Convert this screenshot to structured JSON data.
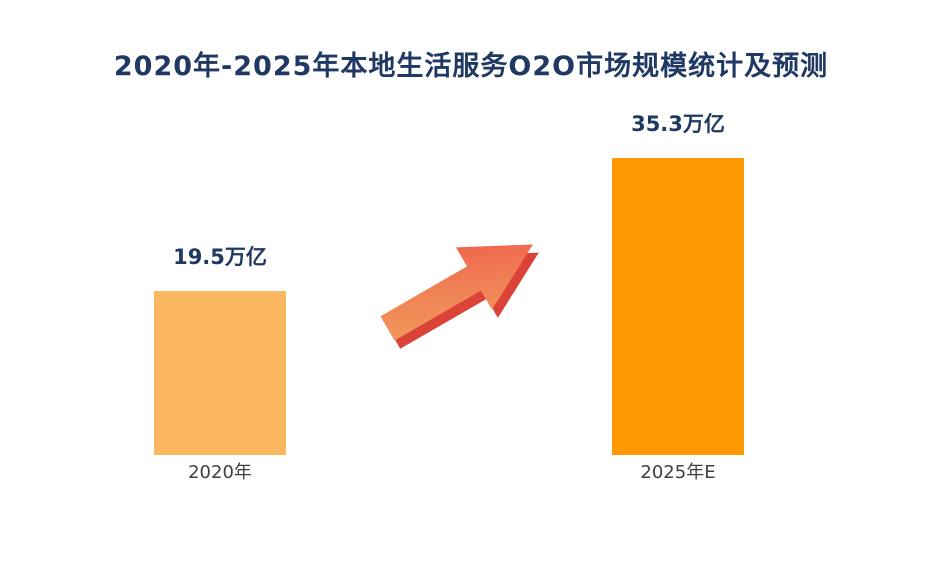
{
  "page": {
    "background": "#ffffff"
  },
  "chart_data": {
    "type": "bar",
    "title": "2020年-2025年本地生活服务O2O市场规模统计及预测",
    "unit": "万亿",
    "categories": [
      "2020年",
      "2025年E"
    ],
    "values": [
      19.5,
      35.3
    ],
    "value_labels": [
      "19.5万亿",
      "35.3万亿"
    ],
    "series": [
      {
        "name": "本地生活服务O2O市场规模",
        "values": [
          19.5,
          35.3
        ]
      }
    ],
    "xlabel": "",
    "ylabel": "",
    "ylim": [
      0,
      35.3
    ],
    "grid": false,
    "legend": "none",
    "bar_colors": [
      "#FBB861",
      "#FF9800"
    ],
    "annotations": [
      "growth arrow pointing up-right between the two bars"
    ]
  },
  "colors": {
    "title": "#1F3864",
    "value_label": "#1F3864",
    "category_label": "#404040",
    "bar_2020": "#FBB861",
    "bar_2025": "#FF9800",
    "arrow_gradient_start": "#F2A15C",
    "arrow_gradient_end": "#F0564A",
    "arrow_shadow": "#DB4338"
  }
}
